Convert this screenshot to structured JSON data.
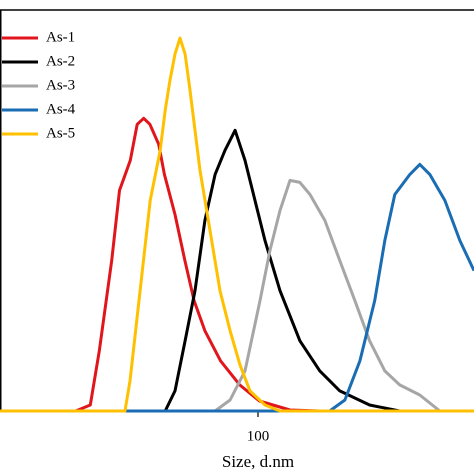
{
  "chart_data": {
    "type": "line",
    "x_label": "Size, d.nm",
    "xscale": "log",
    "xlim": [
      16.5,
      452
    ],
    "xticks": [
      100
    ],
    "ylim": [
      0,
      20
    ],
    "legend": "upper left",
    "series": [
      {
        "name": "As-1",
        "color": "#e0161c",
        "x": [
          16.5,
          28,
          31,
          33,
          36,
          38,
          41,
          43,
          45,
          47,
          50,
          52,
          56,
          60,
          64,
          69,
          77,
          88,
          101,
          125,
          154,
          452
        ],
        "values": [
          0,
          0,
          0.3,
          3.0,
          7.5,
          11.0,
          12.5,
          14.3,
          14.6,
          14.3,
          13.3,
          11.8,
          9.8,
          7.5,
          5.5,
          4.0,
          2.5,
          1.3,
          0.5,
          0.05,
          0,
          0
        ]
      },
      {
        "name": "As-2",
        "color": "#000000",
        "x": [
          16.5,
          52.3,
          56,
          60.1,
          64.4,
          69,
          74.1,
          79.4,
          85.2,
          91.3,
          97.9,
          105,
          116.6,
          134,
          154,
          177,
          218,
          269,
          452
        ],
        "values": [
          0,
          0,
          1.0,
          3.5,
          6.0,
          9.5,
          11.8,
          13.0,
          14.0,
          12.5,
          10.5,
          8.5,
          6.0,
          3.5,
          2.0,
          1.0,
          0.3,
          0,
          0
        ]
      },
      {
        "name": "As-3",
        "color": "#a6a6a6",
        "x": [
          16.5,
          74.1,
          82.3,
          91.3,
          101.4,
          108.7,
          116.6,
          125,
          134,
          143.8,
          159.6,
          177,
          196.7,
          218,
          242.5,
          269,
          309.5,
          356,
          452
        ],
        "values": [
          0,
          0,
          0.55,
          2.0,
          5.5,
          8.0,
          10.0,
          11.5,
          11.4,
          10.8,
          9.5,
          7.5,
          5.5,
          3.5,
          2.0,
          1.3,
          0.8,
          0,
          0
        ]
      },
      {
        "name": "As-4",
        "color": "#1a6db3",
        "x": [
          16.5,
          165,
          183.5,
          203.8,
          226,
          242.5,
          260,
          288.8,
          309.5,
          332,
          368.8,
          409.6,
          452
        ],
        "values": [
          0,
          0,
          0.55,
          2.5,
          5.5,
          8.5,
          10.8,
          11.8,
          12.3,
          11.8,
          10.5,
          8.5,
          7.0
        ]
      },
      {
        "name": "As-5",
        "color": "#ffc000",
        "x": [
          16.5,
          39.5,
          40.9,
          43.9,
          47.1,
          50.5,
          52.3,
          54.1,
          56,
          58,
          60.1,
          62.2,
          64.4,
          66.7,
          71.5,
          76.7,
          82.3,
          88.2,
          94.6,
          105,
          116.6,
          452
        ],
        "values": [
          0,
          0,
          1.5,
          6.0,
          10.5,
          13.0,
          15.0,
          16.5,
          17.8,
          18.6,
          17.8,
          16.0,
          14.0,
          12.0,
          9.0,
          6.0,
          4.0,
          2.3,
          1.0,
          0.3,
          0,
          0
        ]
      }
    ]
  }
}
